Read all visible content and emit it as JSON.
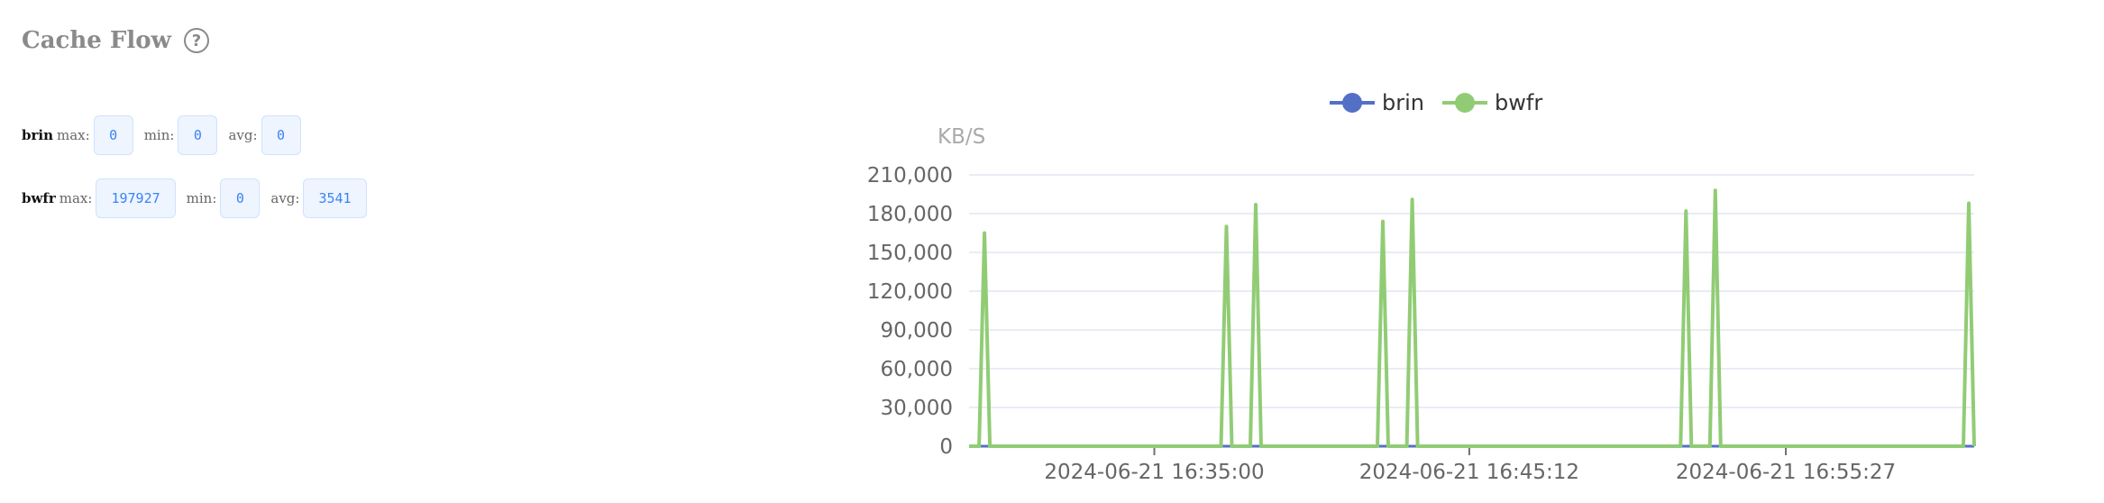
{
  "header": {
    "title": "Cache Flow",
    "help_icon": "question-circle-icon",
    "help_glyph": "?"
  },
  "stats": [
    {
      "name": "brin",
      "max_label": "max:",
      "max": "0",
      "min_label": "min:",
      "min": "0",
      "avg_label": "avg:",
      "avg": "0"
    },
    {
      "name": "bwfr",
      "max_label": "max:",
      "max": "197927",
      "min_label": "min:",
      "min": "0",
      "avg_label": "avg:",
      "avg": "3541"
    }
  ],
  "colors": {
    "brin": "#5470c6",
    "bwfr": "#91cc75",
    "accent": "#3b82f6",
    "grid": "#e0e6f1"
  },
  "chart_data": {
    "type": "line",
    "ylabel": "KB/S",
    "ylim": [
      0,
      210000
    ],
    "yticks": [
      0,
      30000,
      60000,
      90000,
      120000,
      150000,
      180000,
      210000
    ],
    "ytick_labels": [
      "0",
      "30,000",
      "60,000",
      "90,000",
      "120,000",
      "150,000",
      "180,000",
      "210,000"
    ],
    "xlim": [
      "2024-06-21 16:29:00",
      "2024-06-21 17:01:33"
    ],
    "xticks": [
      "2024-06-21 16:35:00",
      "2024-06-21 16:45:12",
      "2024-06-21 16:55:27"
    ],
    "legend_position": "top-center",
    "series": [
      {
        "name": "brin",
        "color": "#5470c6",
        "points": [
          [
            "2024-06-21 16:29:00",
            0
          ],
          [
            "2024-06-21 17:01:33",
            0
          ]
        ]
      },
      {
        "name": "bwfr",
        "color": "#91cc75",
        "points": [
          [
            "2024-06-21 16:29:30",
            165000
          ],
          [
            "2024-06-21 16:37:20",
            170000
          ],
          [
            "2024-06-21 16:38:17",
            187000
          ],
          [
            "2024-06-21 16:42:24",
            174000
          ],
          [
            "2024-06-21 16:43:21",
            191000
          ],
          [
            "2024-06-21 16:52:13",
            182000
          ],
          [
            "2024-06-21 16:53:10",
            197927
          ],
          [
            "2024-06-21 17:02:00",
            188000
          ]
        ]
      }
    ]
  }
}
